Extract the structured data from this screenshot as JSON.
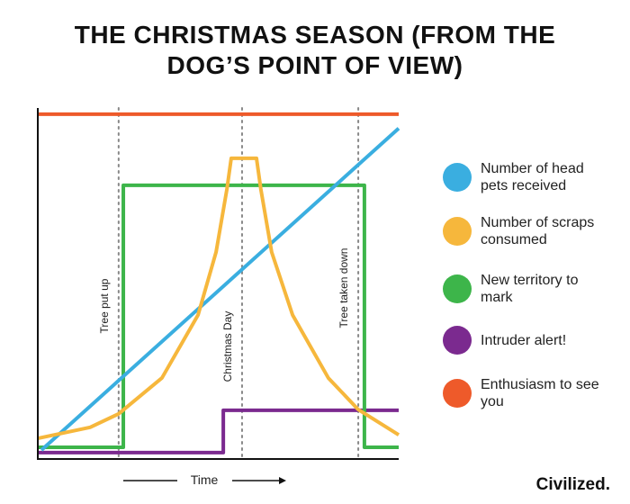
{
  "chart_data": {
    "type": "line",
    "title": "THE CHRISTMAS SEASON (FROM THE DOG’S POINT OF VIEW)",
    "xlabel": "Time",
    "xlim": [
      0,
      100
    ],
    "ylim": [
      0,
      100
    ],
    "series": [
      {
        "name": "Number of head pets received",
        "color": "#3aaee0",
        "x": [
          1,
          100
        ],
        "values": [
          2.5,
          93
        ]
      },
      {
        "name": "Number of scraps consumed",
        "color": "#f6b73c",
        "x": [
          0,
          14.5,
          22.4,
          34.4,
          44.4,
          49.4,
          52.4,
          53.6,
          60.6,
          61.8,
          64.8,
          70.6,
          80.5,
          88.8,
          100
        ],
        "values": [
          5.8,
          8.9,
          12.7,
          22.8,
          40.5,
          58.2,
          75.9,
          84.6,
          84.6,
          75.9,
          58.2,
          40.5,
          22.8,
          13.9,
          6.8
        ]
      },
      {
        "name": "New territory to mark",
        "color": "#3db54a",
        "x": [
          0,
          23.7,
          23.7,
          90.5,
          90.5,
          100
        ],
        "values": [
          3.3,
          3.3,
          77,
          77,
          3.3,
          3.3
        ]
      },
      {
        "name": "Intruder alert!",
        "color": "#7b2a8f",
        "x": [
          0,
          51.4,
          51.4,
          100
        ],
        "values": [
          1.8,
          1.8,
          13.7,
          13.7
        ]
      },
      {
        "name": "Enthusiasm to see you",
        "color": "#ee5a2a",
        "x": [
          0,
          100
        ],
        "values": [
          97,
          97
        ]
      }
    ],
    "annotations": [
      {
        "text": "Tree put up",
        "x": 22.4
      },
      {
        "text": "Christmas Day",
        "x": 56.6
      },
      {
        "text": "Tree taken down",
        "x": 88.8
      }
    ],
    "brand": "Civilized."
  }
}
